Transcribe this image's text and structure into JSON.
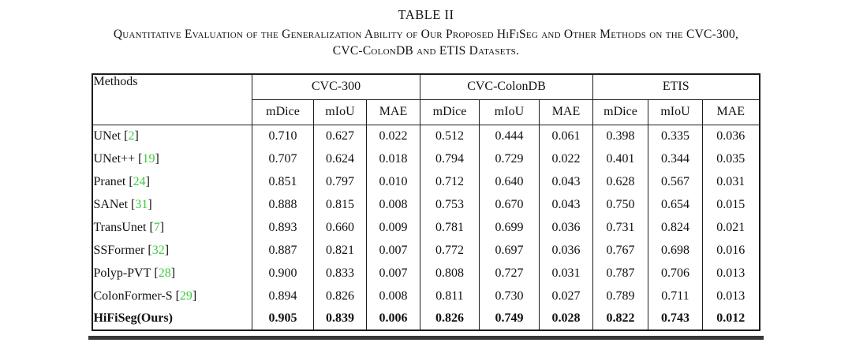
{
  "title": {
    "label": "TABLE II",
    "caption_line1": "Quantitative Evaluation of the Generalization Ability of Our Proposed HiFiSeg and Other Methods on the CVC-300,",
    "caption_line2": "CVC-ColonDB and ETIS Datasets."
  },
  "table": {
    "method_header": "Methods",
    "groups": [
      {
        "label": "CVC-300"
      },
      {
        "label": "CVC-ColonDB"
      },
      {
        "label": "ETIS"
      }
    ],
    "metrics": [
      "mDice",
      "mIoU",
      "MAE"
    ],
    "cite_open": "[",
    "cite_close": "]",
    "rows": [
      {
        "method": "UNet",
        "cite": "2",
        "bold": false,
        "values": [
          "0.710",
          "0.627",
          "0.022",
          "0.512",
          "0.444",
          "0.061",
          "0.398",
          "0.335",
          "0.036"
        ]
      },
      {
        "method": "UNet++",
        "cite": "19",
        "bold": false,
        "values": [
          "0.707",
          "0.624",
          "0.018",
          "0.794",
          "0.729",
          "0.022",
          "0.401",
          "0.344",
          "0.035"
        ]
      },
      {
        "method": "Pranet",
        "cite": "24",
        "bold": false,
        "values": [
          "0.851",
          "0.797",
          "0.010",
          "0.712",
          "0.640",
          "0.043",
          "0.628",
          "0.567",
          "0.031"
        ]
      },
      {
        "method": "SANet",
        "cite": "31",
        "bold": false,
        "values": [
          "0.888",
          "0.815",
          "0.008",
          "0.753",
          "0.670",
          "0.043",
          "0.750",
          "0.654",
          "0.015"
        ]
      },
      {
        "method": "TransUnet",
        "cite": "7",
        "bold": false,
        "values": [
          "0.893",
          "0.660",
          "0.009",
          "0.781",
          "0.699",
          "0.036",
          "0.731",
          "0.824",
          "0.021"
        ]
      },
      {
        "method": "SSFormer",
        "cite": "32",
        "bold": false,
        "values": [
          "0.887",
          "0.821",
          "0.007",
          "0.772",
          "0.697",
          "0.036",
          "0.767",
          "0.698",
          "0.016"
        ]
      },
      {
        "method": "Polyp-PVT",
        "cite": "28",
        "bold": false,
        "values": [
          "0.900",
          "0.833",
          "0.007",
          "0.808",
          "0.727",
          "0.031",
          "0.787",
          "0.706",
          "0.013"
        ]
      },
      {
        "method": "ColonFormer-S",
        "cite": "29",
        "bold": false,
        "values": [
          "0.894",
          "0.826",
          "0.008",
          "0.811",
          "0.730",
          "0.027",
          "0.789",
          "0.711",
          "0.013"
        ]
      },
      {
        "method": "HiFiSeg(Ours)",
        "cite": null,
        "bold": true,
        "values": [
          "0.905",
          "0.839",
          "0.006",
          "0.826",
          "0.749",
          "0.028",
          "0.822",
          "0.743",
          "0.012"
        ]
      }
    ]
  },
  "colors": {
    "citation_green": "#3ccc3c",
    "line_black": "#1c1c1c"
  }
}
